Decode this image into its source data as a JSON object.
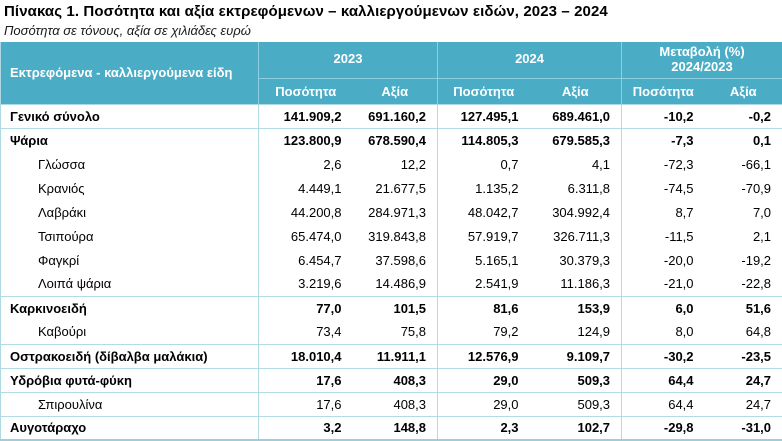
{
  "title": "Πίνακας 1. Ποσότητα και αξία εκτρεφόμενων – καλλιεργούμενων ειδών, 2023 – 2024",
  "subtitle": "Ποσότητα σε τόνους, αξία σε χιλιάδες ευρώ",
  "colors": {
    "header_bg": "#4BACC6",
    "header_text": "#FFFFFF",
    "grid_line": "#AED8E2",
    "body_text": "#000000"
  },
  "table": {
    "species_header": "Εκτρεφόμενα - καλλιεργούμενα είδη",
    "col_groups": [
      {
        "label": "2023",
        "label2": "",
        "subcolumns": [
          "Ποσότητα",
          "Αξία"
        ]
      },
      {
        "label": "2024",
        "label2": "",
        "subcolumns": [
          "Ποσότητα",
          "Αξία"
        ]
      },
      {
        "label": "Μεταβολή (%)",
        "label2": "2024/2023",
        "subcolumns": [
          "Ποσότητα",
          "Αξία"
        ]
      }
    ],
    "rows": [
      {
        "label": "Γενικό σύνολο",
        "bold": true,
        "indent": false,
        "separator_above": false,
        "values": [
          "141.909,2",
          "691.160,2",
          "127.495,1",
          "689.461,0",
          "-10,2",
          "-0,2"
        ]
      },
      {
        "label": "Ψάρια",
        "bold": true,
        "indent": false,
        "separator_above": true,
        "values": [
          "123.800,9",
          "678.590,4",
          "114.805,3",
          "679.585,3",
          "-7,3",
          "0,1"
        ]
      },
      {
        "label": "Γλώσσα",
        "bold": false,
        "indent": true,
        "separator_above": false,
        "values": [
          "2,6",
          "12,2",
          "0,7",
          "4,1",
          "-72,3",
          "-66,1"
        ]
      },
      {
        "label": "Κρανιός",
        "bold": false,
        "indent": true,
        "separator_above": false,
        "values": [
          "4.449,1",
          "21.677,5",
          "1.135,2",
          "6.311,8",
          "-74,5",
          "-70,9"
        ]
      },
      {
        "label": "Λαβράκι",
        "bold": false,
        "indent": true,
        "separator_above": false,
        "values": [
          "44.200,8",
          "284.971,3",
          "48.042,7",
          "304.992,4",
          "8,7",
          "7,0"
        ]
      },
      {
        "label": "Τσιπούρα",
        "bold": false,
        "indent": true,
        "separator_above": false,
        "values": [
          "65.474,0",
          "319.843,8",
          "57.919,7",
          "326.711,3",
          "-11,5",
          "2,1"
        ]
      },
      {
        "label": "Φαγκρί",
        "bold": false,
        "indent": true,
        "separator_above": false,
        "values": [
          "6.454,7",
          "37.598,6",
          "5.165,1",
          "30.379,3",
          "-20,0",
          "-19,2"
        ]
      },
      {
        "label": "Λοιπά ψάρια",
        "bold": false,
        "indent": true,
        "separator_above": false,
        "values": [
          "3.219,6",
          "14.486,9",
          "2.541,9",
          "11.186,3",
          "-21,0",
          "-22,8"
        ]
      },
      {
        "label": "Καρκινοειδή",
        "bold": true,
        "indent": false,
        "separator_above": true,
        "values": [
          "77,0",
          "101,5",
          "81,6",
          "153,9",
          "6,0",
          "51,6"
        ]
      },
      {
        "label": "Καβούρι",
        "bold": false,
        "indent": true,
        "separator_above": false,
        "values": [
          "73,4",
          "75,8",
          "79,2",
          "124,9",
          "8,0",
          "64,8"
        ]
      },
      {
        "label": "Οστρακοειδή (δίβαλβα μαλάκια)",
        "bold": true,
        "indent": false,
        "separator_above": true,
        "values": [
          "18.010,4",
          "11.911,1",
          "12.576,9",
          "9.109,7",
          "-30,2",
          "-23,5"
        ]
      },
      {
        "label": "Υδρόβια φυτά-φύκη",
        "bold": true,
        "indent": false,
        "separator_above": true,
        "values": [
          "17,6",
          "408,3",
          "29,0",
          "509,3",
          "64,4",
          "24,7"
        ]
      },
      {
        "label": "Σπιρουλίνα",
        "bold": false,
        "indent": true,
        "separator_above": true,
        "values": [
          "17,6",
          "408,3",
          "29,0",
          "509,3",
          "64,4",
          "24,7"
        ]
      },
      {
        "label": "Αυγοτάραχο",
        "bold": true,
        "indent": false,
        "separator_above": true,
        "values": [
          "3,2",
          "148,8",
          "2,3",
          "102,7",
          "-29,8",
          "-31,0"
        ]
      }
    ]
  }
}
